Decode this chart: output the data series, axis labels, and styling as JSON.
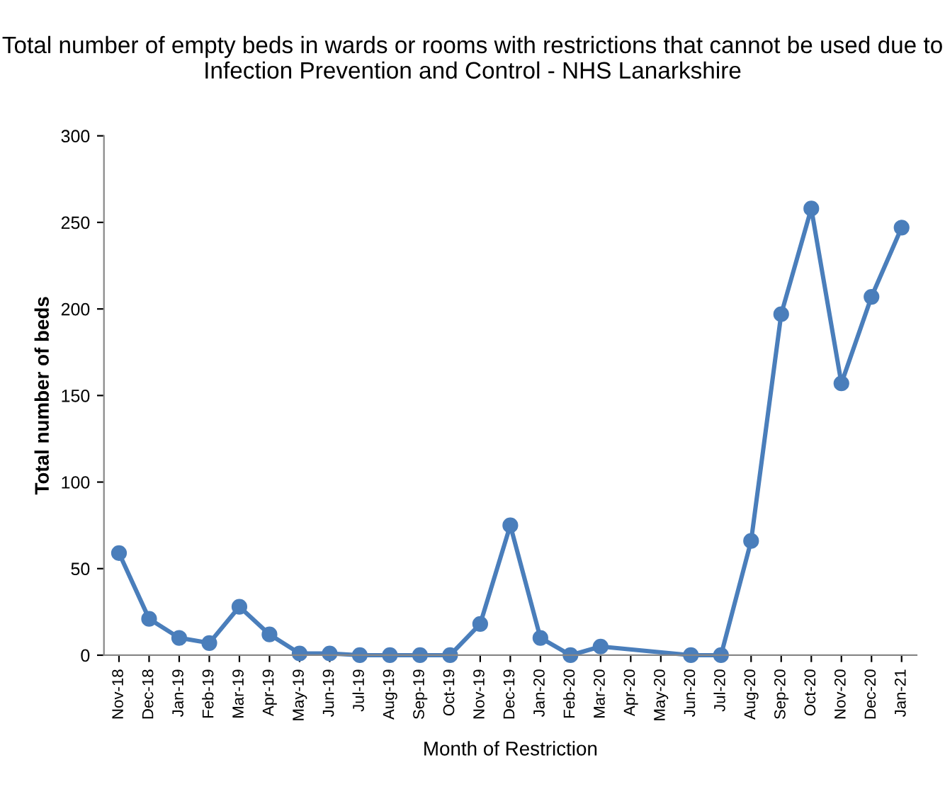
{
  "chart_data": {
    "type": "line",
    "title": "Total number of empty beds in wards or rooms with restrictions that cannot be used due to Infection Prevention and Control - NHS Lanarkshire",
    "xlabel": "Month of Restriction",
    "ylabel": "Total number of beds",
    "categories": [
      "Nov-18",
      "Dec-18",
      "Jan-19",
      "Feb-19",
      "Mar-19",
      "Apr-19",
      "May-19",
      "Jun-19",
      "Jul-19",
      "Aug-19",
      "Sep-19",
      "Oct-19",
      "Nov-19",
      "Dec-19",
      "Jan-20",
      "Feb-20",
      "Mar-20",
      "Apr-20",
      "May-20",
      "Jun-20",
      "Jul-20",
      "Aug-20",
      "Sep-20",
      "Oct-20",
      "Nov-20",
      "Dec-20",
      "Jan-21"
    ],
    "series": [
      {
        "color": "#4a7ebb",
        "values": [
          59,
          21,
          10,
          7,
          28,
          12,
          1,
          1,
          0,
          0,
          0,
          0,
          18,
          75,
          10,
          0,
          5,
          null,
          null,
          0,
          0,
          66,
          197,
          258,
          157,
          207,
          247
        ]
      }
    ],
    "ylim": [
      0,
      300
    ],
    "yticks": [
      0,
      50,
      100,
      150,
      200,
      250,
      300
    ],
    "marker": "circle",
    "line_style": "solid",
    "grid": false,
    "legend": false
  }
}
